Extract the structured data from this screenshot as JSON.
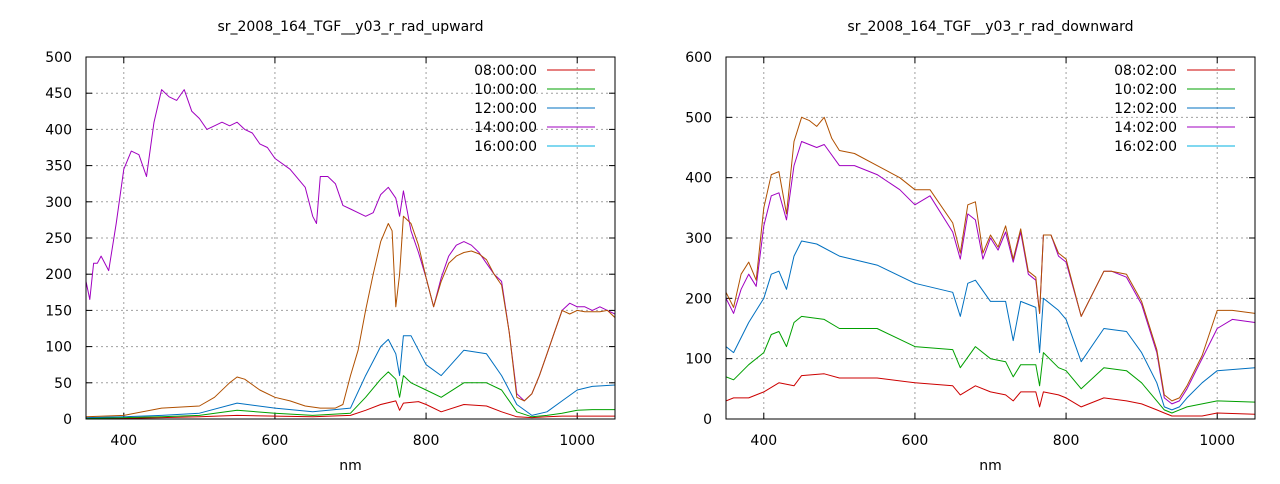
{
  "chart_data": [
    {
      "type": "line",
      "title": "sr_2008_164_TGF__y03_r_rad_upward",
      "xlabel": "nm",
      "ylabel": "",
      "xlim": [
        350,
        1050
      ],
      "ylim": [
        0,
        500
      ],
      "xticks": [
        400,
        600,
        800,
        1000
      ],
      "yticks": [
        0,
        50,
        100,
        150,
        200,
        250,
        300,
        350,
        400,
        450,
        500
      ],
      "grid": true,
      "legend": "top-right",
      "series": [
        {
          "name": "08:00:00",
          "color": "#cc0000",
          "x": [
            350,
            400,
            450,
            500,
            550,
            600,
            650,
            700,
            720,
            740,
            760,
            765,
            770,
            790,
            800,
            820,
            850,
            880,
            900,
            920,
            940,
            960,
            980,
            1000,
            1050
          ],
          "y": [
            1,
            1,
            2,
            3,
            5,
            4,
            3,
            5,
            12,
            20,
            25,
            12,
            22,
            24,
            20,
            10,
            20,
            18,
            10,
            3,
            2,
            3,
            4,
            4,
            4
          ]
        },
        {
          "name": "10:00:00",
          "color": "#00a000",
          "x": [
            350,
            400,
            450,
            500,
            550,
            600,
            650,
            700,
            720,
            740,
            750,
            760,
            765,
            770,
            780,
            800,
            820,
            850,
            880,
            900,
            920,
            940,
            960,
            980,
            1000,
            1020,
            1050
          ],
          "y": [
            1,
            2,
            3,
            5,
            12,
            8,
            5,
            8,
            30,
            55,
            65,
            55,
            30,
            60,
            50,
            40,
            30,
            50,
            50,
            40,
            10,
            3,
            5,
            8,
            12,
            13,
            13
          ]
        },
        {
          "name": "12:00:00",
          "color": "#0070c0",
          "x": [
            350,
            400,
            450,
            500,
            550,
            600,
            650,
            700,
            720,
            740,
            750,
            760,
            765,
            770,
            780,
            800,
            820,
            850,
            880,
            900,
            920,
            940,
            960,
            980,
            1000,
            1020,
            1050
          ],
          "y": [
            2,
            3,
            5,
            8,
            22,
            15,
            10,
            15,
            60,
            100,
            110,
            90,
            60,
            115,
            115,
            75,
            60,
            95,
            90,
            60,
            20,
            5,
            10,
            25,
            40,
            45,
            47
          ]
        },
        {
          "name": "14:00:00",
          "color": "#a000c0",
          "x": [
            350,
            355,
            360,
            365,
            370,
            380,
            390,
            400,
            410,
            420,
            430,
            440,
            450,
            460,
            470,
            480,
            490,
            500,
            510,
            520,
            530,
            540,
            550,
            560,
            570,
            580,
            590,
            600,
            620,
            640,
            650,
            655,
            660,
            670,
            680,
            690,
            700,
            710,
            720,
            730,
            740,
            750,
            760,
            765,
            770,
            780,
            790,
            800,
            810,
            820,
            830,
            840,
            850,
            860,
            870,
            880,
            890,
            900,
            910,
            920,
            930,
            940,
            950,
            960,
            970,
            980,
            990,
            1000,
            1010,
            1020,
            1030,
            1040,
            1050
          ],
          "y": [
            190,
            165,
            215,
            215,
            225,
            205,
            270,
            345,
            370,
            365,
            335,
            410,
            455,
            445,
            440,
            455,
            425,
            415,
            400,
            405,
            410,
            405,
            410,
            400,
            395,
            380,
            375,
            360,
            345,
            320,
            280,
            270,
            335,
            335,
            325,
            295,
            290,
            285,
            280,
            285,
            310,
            320,
            305,
            280,
            315,
            260,
            230,
            195,
            155,
            195,
            225,
            240,
            245,
            240,
            230,
            215,
            200,
            190,
            120,
            35,
            25,
            35,
            60,
            90,
            120,
            150,
            160,
            155,
            155,
            150,
            155,
            150,
            145
          ]
        },
        {
          "name": "16:00:00",
          "color": "#00b0e0",
          "x": [
            350,
            1050
          ],
          "y": [
            0,
            0
          ]
        },
        {
          "name": "",
          "color": "#b05000",
          "x": [
            350,
            400,
            450,
            500,
            520,
            540,
            550,
            560,
            580,
            600,
            620,
            640,
            660,
            680,
            690,
            700,
            710,
            720,
            730,
            740,
            750,
            755,
            760,
            765,
            770,
            780,
            790,
            800,
            810,
            820,
            830,
            840,
            850,
            860,
            870,
            880,
            890,
            900,
            910,
            920,
            930,
            940,
            950,
            960,
            970,
            980,
            990,
            1000,
            1010,
            1020,
            1030,
            1040,
            1050
          ],
          "y": [
            3,
            5,
            15,
            18,
            30,
            50,
            58,
            55,
            40,
            30,
            25,
            18,
            15,
            15,
            20,
            60,
            95,
            150,
            200,
            245,
            270,
            260,
            155,
            200,
            280,
            270,
            240,
            195,
            155,
            190,
            215,
            225,
            230,
            232,
            228,
            220,
            200,
            185,
            120,
            30,
            25,
            35,
            60,
            90,
            120,
            150,
            145,
            150,
            148,
            148,
            148,
            150,
            140
          ]
        }
      ]
    },
    {
      "type": "line",
      "title": "sr_2008_164_TGF__y03_r_rad_downward",
      "xlabel": "nm",
      "ylabel": "",
      "xlim": [
        350,
        1050
      ],
      "ylim": [
        0,
        600
      ],
      "xticks": [
        400,
        600,
        800,
        1000
      ],
      "yticks": [
        0,
        100,
        200,
        300,
        400,
        500,
        600
      ],
      "grid": true,
      "legend": "top-right",
      "series": [
        {
          "name": "08:02:00",
          "color": "#cc0000",
          "x": [
            350,
            360,
            380,
            400,
            420,
            440,
            450,
            480,
            500,
            550,
            600,
            650,
            660,
            680,
            700,
            720,
            730,
            740,
            760,
            765,
            770,
            790,
            800,
            820,
            850,
            880,
            900,
            920,
            930,
            940,
            950,
            960,
            980,
            1000,
            1050
          ],
          "y": [
            30,
            35,
            35,
            45,
            60,
            55,
            72,
            75,
            68,
            68,
            60,
            55,
            40,
            55,
            45,
            40,
            30,
            45,
            45,
            20,
            45,
            40,
            35,
            20,
            35,
            30,
            25,
            15,
            10,
            5,
            5,
            5,
            5,
            10,
            8
          ]
        },
        {
          "name": "10:02:00",
          "color": "#00a000",
          "x": [
            350,
            360,
            380,
            400,
            410,
            420,
            430,
            440,
            450,
            480,
            500,
            550,
            600,
            650,
            660,
            680,
            700,
            720,
            730,
            740,
            760,
            765,
            770,
            790,
            800,
            820,
            850,
            880,
            900,
            920,
            930,
            940,
            950,
            960,
            980,
            1000,
            1050
          ],
          "y": [
            70,
            65,
            90,
            110,
            140,
            145,
            120,
            160,
            170,
            165,
            150,
            150,
            120,
            115,
            85,
            120,
            100,
            95,
            70,
            90,
            90,
            55,
            110,
            85,
            80,
            50,
            85,
            80,
            60,
            30,
            15,
            10,
            15,
            20,
            25,
            30,
            28
          ]
        },
        {
          "name": "12:02:00",
          "color": "#0070c0",
          "x": [
            350,
            360,
            380,
            400,
            410,
            420,
            430,
            440,
            450,
            470,
            500,
            550,
            600,
            650,
            660,
            670,
            680,
            700,
            720,
            730,
            740,
            760,
            765,
            770,
            790,
            800,
            820,
            850,
            880,
            900,
            920,
            930,
            940,
            950,
            960,
            980,
            1000,
            1050
          ],
          "y": [
            120,
            110,
            160,
            200,
            240,
            245,
            215,
            270,
            295,
            290,
            270,
            255,
            225,
            210,
            170,
            225,
            230,
            195,
            195,
            130,
            195,
            185,
            110,
            200,
            180,
            165,
            95,
            150,
            145,
            110,
            60,
            20,
            15,
            20,
            35,
            60,
            80,
            85
          ]
        },
        {
          "name": "14:02:00",
          "color": "#a000c0",
          "x": [
            350,
            360,
            370,
            380,
            390,
            400,
            410,
            420,
            430,
            440,
            450,
            470,
            480,
            500,
            520,
            550,
            580,
            600,
            620,
            650,
            660,
            670,
            680,
            690,
            700,
            710,
            720,
            730,
            740,
            750,
            760,
            765,
            770,
            780,
            790,
            800,
            820,
            850,
            860,
            880,
            900,
            920,
            930,
            940,
            950,
            960,
            980,
            1000,
            1020,
            1050
          ],
          "y": [
            200,
            175,
            215,
            240,
            220,
            320,
            370,
            375,
            330,
            420,
            460,
            450,
            455,
            420,
            420,
            405,
            380,
            355,
            370,
            310,
            265,
            340,
            330,
            265,
            300,
            280,
            310,
            260,
            310,
            240,
            230,
            175,
            305,
            305,
            270,
            260,
            170,
            245,
            245,
            235,
            190,
            110,
            35,
            25,
            30,
            50,
            100,
            150,
            165,
            160
          ]
        },
        {
          "name": "16:02:00",
          "color": "#00b0e0",
          "x": [
            350,
            1050
          ],
          "y": [
            0,
            0
          ]
        },
        {
          "name": "",
          "color": "#b05000",
          "x": [
            350,
            360,
            370,
            380,
            390,
            400,
            410,
            420,
            430,
            440,
            450,
            460,
            470,
            480,
            490,
            500,
            520,
            550,
            580,
            600,
            620,
            650,
            660,
            670,
            680,
            690,
            700,
            710,
            720,
            730,
            740,
            750,
            760,
            765,
            770,
            780,
            790,
            800,
            820,
            850,
            860,
            880,
            900,
            920,
            930,
            940,
            950,
            960,
            980,
            1000,
            1020,
            1050
          ],
          "y": [
            210,
            185,
            240,
            260,
            230,
            350,
            405,
            410,
            340,
            460,
            500,
            495,
            485,
            500,
            465,
            445,
            440,
            420,
            400,
            380,
            380,
            325,
            275,
            355,
            360,
            275,
            305,
            285,
            320,
            265,
            315,
            245,
            235,
            175,
            305,
            305,
            275,
            265,
            170,
            245,
            245,
            240,
            195,
            115,
            40,
            30,
            35,
            55,
            105,
            180,
            180,
            175
          ]
        }
      ]
    }
  ]
}
